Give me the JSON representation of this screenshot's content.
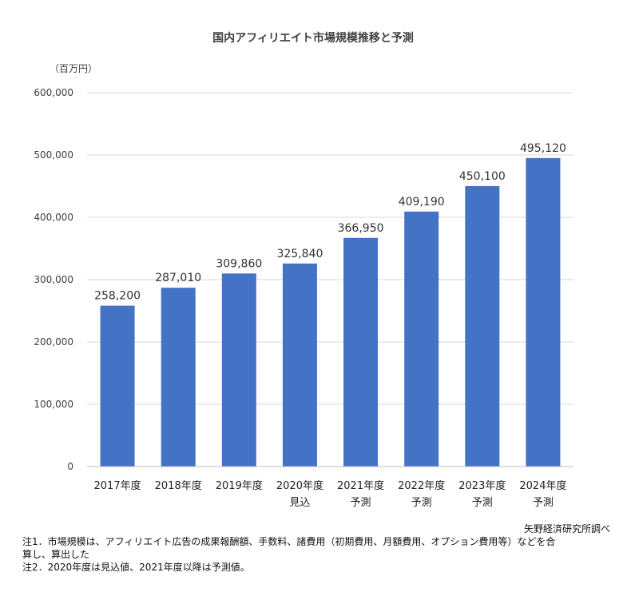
{
  "chart_data": {
    "type": "bar",
    "title": "国内アフィリエイト市場規模推移と予測",
    "unit_label": "（百万円）",
    "categories": [
      [
        "2017年度"
      ],
      [
        "2018年度"
      ],
      [
        "2019年度"
      ],
      [
        "2020年度",
        "見込"
      ],
      [
        "2021年度",
        "予測"
      ],
      [
        "2022年度",
        "予測"
      ],
      [
        "2023年度",
        "予測"
      ],
      [
        "2024年度",
        "予測"
      ]
    ],
    "values": [
      258200,
      287010,
      309860,
      325840,
      366950,
      409190,
      450100,
      495120
    ],
    "data_labels": [
      "258,200",
      "287,010",
      "309,860",
      "325,840",
      "366,950",
      "409,190",
      "450,100",
      "495,120"
    ],
    "ylim": [
      0,
      600000
    ],
    "yticks": [
      0,
      100000,
      200000,
      300000,
      400000,
      500000,
      600000
    ],
    "ytick_labels": [
      "0",
      "100,000",
      "200,000",
      "300,000",
      "400,000",
      "500,000",
      "600,000"
    ],
    "grid": true,
    "bar_color": "#4472C4"
  },
  "notes": {
    "source": "矢野経済研究所調べ",
    "note1": "注1．市場規模は、アフィリエイト広告の成果報酬額、手数料、諸費用（初期費用、月額費用、オプション費用等）などを合\n算し、算出した",
    "note2": "注2．2020年度は見込値、2021年度以降は予測値。"
  }
}
